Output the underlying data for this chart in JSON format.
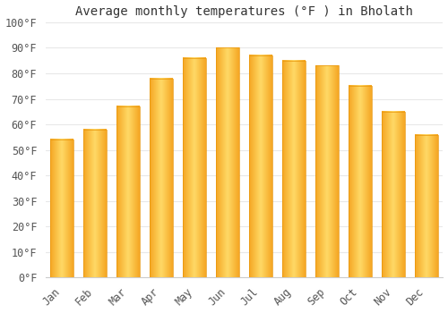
{
  "months": [
    "Jan",
    "Feb",
    "Mar",
    "Apr",
    "May",
    "Jun",
    "Jul",
    "Aug",
    "Sep",
    "Oct",
    "Nov",
    "Dec"
  ],
  "values": [
    54,
    58,
    67,
    78,
    86,
    90,
    87,
    85,
    83,
    75,
    65,
    56
  ],
  "bar_color_center": "#FFD966",
  "bar_color_edge": "#F5A623",
  "title": "Average monthly temperatures (°F ) in Bholath",
  "ylim": [
    0,
    100
  ],
  "yticks": [
    0,
    10,
    20,
    30,
    40,
    50,
    60,
    70,
    80,
    90,
    100
  ],
  "ytick_labels": [
    "0°F",
    "10°F",
    "20°F",
    "30°F",
    "40°F",
    "50°F",
    "60°F",
    "70°F",
    "80°F",
    "90°F",
    "100°F"
  ],
  "background_color": "#ffffff",
  "grid_color": "#e8e8e8",
  "title_fontsize": 10,
  "tick_fontsize": 8.5
}
